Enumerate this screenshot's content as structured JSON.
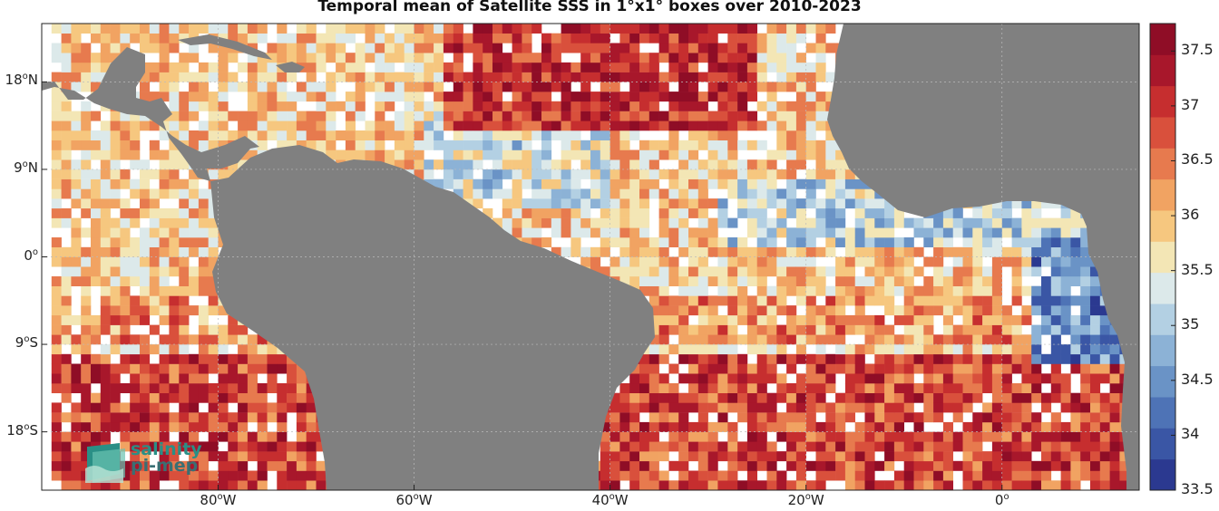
{
  "title": "Temporal mean of Satellite SSS in 1°x1° boxes over 2010-2023",
  "lat_labels": [
    {
      "deg": "18",
      "hemi": "N",
      "lat": 18
    },
    {
      "deg": "9",
      "hemi": "N",
      "lat": 9
    },
    {
      "deg": "0",
      "hemi": "",
      "lat": 0
    },
    {
      "deg": "9",
      "hemi": "S",
      "lat": -9
    },
    {
      "deg": "18",
      "hemi": "S",
      "lat": -18
    }
  ],
  "lon_labels": [
    {
      "deg": "80",
      "hemi": "W",
      "lon": -80
    },
    {
      "deg": "60",
      "hemi": "W",
      "lon": -60
    },
    {
      "deg": "40",
      "hemi": "W",
      "lon": -40
    },
    {
      "deg": "20",
      "hemi": "W",
      "lon": -20
    },
    {
      "deg": "0",
      "hemi": "",
      "lon": 0
    }
  ],
  "colorbar": {
    "min": 33.5,
    "max": 37.75,
    "ticks": [
      "37.5",
      "37",
      "36.5",
      "36",
      "35.5",
      "35",
      "34.5",
      "34",
      "33.5"
    ],
    "colors": [
      "#2b3990",
      "#3a56a5",
      "#4e73b6",
      "#6a93c6",
      "#8cb2d6",
      "#b3d0e3",
      "#dce9ea",
      "#f3e6b5",
      "#f6c77f",
      "#f1a362",
      "#e77a4e",
      "#d9503c",
      "#c62e2f",
      "#a8172b",
      "#8f0d26"
    ]
  },
  "map_extent": {
    "lon_min": -98,
    "lon_max": 14,
    "lat_min": -24,
    "lat_max": 24
  },
  "land_color": "#808080",
  "logo": {
    "line1": "salinity",
    "line2": "pi-mep"
  }
}
